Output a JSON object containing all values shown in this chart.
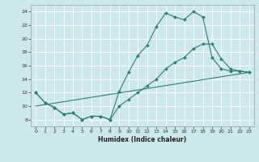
{
  "xlabel": "Humidex (Indice chaleur)",
  "bg_color": "#cce8ec",
  "grid_color": "#ffffff",
  "line_color": "#2d7d74",
  "xlim": [
    -0.5,
    23.5
  ],
  "ylim": [
    7,
    25
  ],
  "yticks": [
    8,
    10,
    12,
    14,
    16,
    18,
    20,
    22,
    24
  ],
  "xticks": [
    0,
    1,
    2,
    3,
    4,
    5,
    6,
    7,
    8,
    9,
    10,
    11,
    12,
    13,
    14,
    15,
    16,
    17,
    18,
    19,
    20,
    21,
    22,
    23
  ],
  "line1_x": [
    0,
    1,
    2,
    3,
    4,
    5,
    6,
    7,
    8,
    9,
    10,
    11,
    12,
    13,
    14,
    15,
    16,
    17,
    18,
    19,
    20,
    21,
    22,
    23
  ],
  "line1_y": [
    12,
    10.5,
    9.8,
    8.8,
    9,
    8,
    8.5,
    8.5,
    8,
    12.2,
    15,
    17.5,
    19,
    21.8,
    23.8,
    23.2,
    22.8,
    24,
    23.2,
    17.2,
    15.5,
    15.2,
    15.2,
    15
  ],
  "line2_x": [
    0,
    1,
    2,
    3,
    4,
    5,
    6,
    7,
    8,
    9,
    10,
    11,
    12,
    13,
    14,
    15,
    16,
    17,
    18,
    19,
    20,
    21,
    22,
    23
  ],
  "line2_y": [
    12,
    10.5,
    9.8,
    8.8,
    9,
    8,
    8.5,
    8.5,
    8,
    10,
    11,
    12,
    13,
    14,
    15.5,
    16.5,
    17.2,
    18.5,
    19.2,
    19.2,
    17,
    15.5,
    15.2,
    15
  ],
  "line3_x": [
    0,
    23
  ],
  "line3_y": [
    10.0,
    15.0
  ]
}
